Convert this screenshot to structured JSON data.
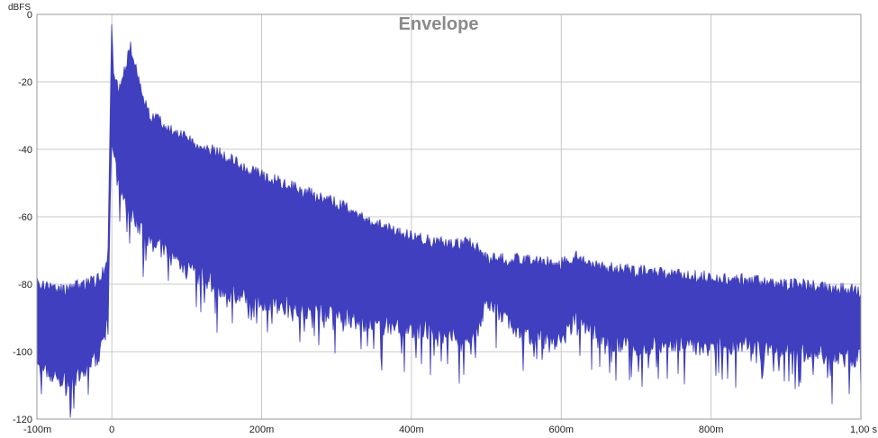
{
  "chart_data": {
    "type": "area",
    "title": "Envelope",
    "ylabel": "dBFS",
    "xlabel": "",
    "xlim": [
      -0.1,
      1.0
    ],
    "ylim": [
      -120,
      0
    ],
    "grid": true,
    "x_ticks": [
      {
        "value": -0.1,
        "label": "-100m"
      },
      {
        "value": 0.0,
        "label": "0"
      },
      {
        "value": 0.2,
        "label": "200m"
      },
      {
        "value": 0.4,
        "label": "400m"
      },
      {
        "value": 0.6,
        "label": "600m"
      },
      {
        "value": 0.8,
        "label": "800m"
      },
      {
        "value": 1.0,
        "label": "1,00 s"
      }
    ],
    "y_ticks": [
      {
        "value": 0,
        "label": "0"
      },
      {
        "value": -20,
        "label": "-20"
      },
      {
        "value": -40,
        "label": "-40"
      },
      {
        "value": -60,
        "label": "-60"
      },
      {
        "value": -80,
        "label": "-80"
      },
      {
        "value": -100,
        "label": "-100"
      },
      {
        "value": -120,
        "label": "-120"
      }
    ],
    "series": [
      {
        "color": "#3f3fbf",
        "upper_envelope": {
          "x": [
            -0.1,
            -0.08,
            -0.06,
            -0.04,
            -0.02,
            -0.01,
            -0.005,
            0.0,
            0.002,
            0.01,
            0.025,
            0.05,
            0.1,
            0.15,
            0.2,
            0.25,
            0.3,
            0.35,
            0.4,
            0.45,
            0.48,
            0.5,
            0.55,
            0.6,
            0.62,
            0.65,
            0.7,
            0.75,
            0.8,
            0.85,
            0.9,
            0.95,
            1.0
          ],
          "y": [
            -78,
            -79,
            -80,
            -78,
            -77,
            -74,
            -68,
            0,
            -15,
            -20,
            -8,
            -28,
            -35,
            -40,
            -46,
            -50,
            -54,
            -60,
            -64,
            -66,
            -66,
            -70,
            -71,
            -72,
            -70,
            -73,
            -74,
            -75,
            -76,
            -77,
            -78,
            -79,
            -80
          ]
        },
        "lower_envelope": {
          "x": [
            -0.1,
            -0.08,
            -0.06,
            -0.04,
            -0.02,
            -0.01,
            -0.005,
            0.0,
            0.002,
            0.01,
            0.025,
            0.05,
            0.1,
            0.15,
            0.2,
            0.25,
            0.3,
            0.35,
            0.4,
            0.45,
            0.48,
            0.5,
            0.55,
            0.6,
            0.62,
            0.65,
            0.7,
            0.75,
            0.8,
            0.85,
            0.9,
            0.95,
            1.0
          ],
          "y": [
            -108,
            -110,
            -112,
            -110,
            -104,
            -96,
            -90,
            -40,
            -45,
            -55,
            -62,
            -70,
            -78,
            -85,
            -88,
            -90,
            -92,
            -95,
            -96,
            -97,
            -102,
            -88,
            -98,
            -100,
            -93,
            -98,
            -102,
            -100,
            -102,
            -100,
            -103,
            -104,
            -105
          ]
        }
      }
    ]
  }
}
